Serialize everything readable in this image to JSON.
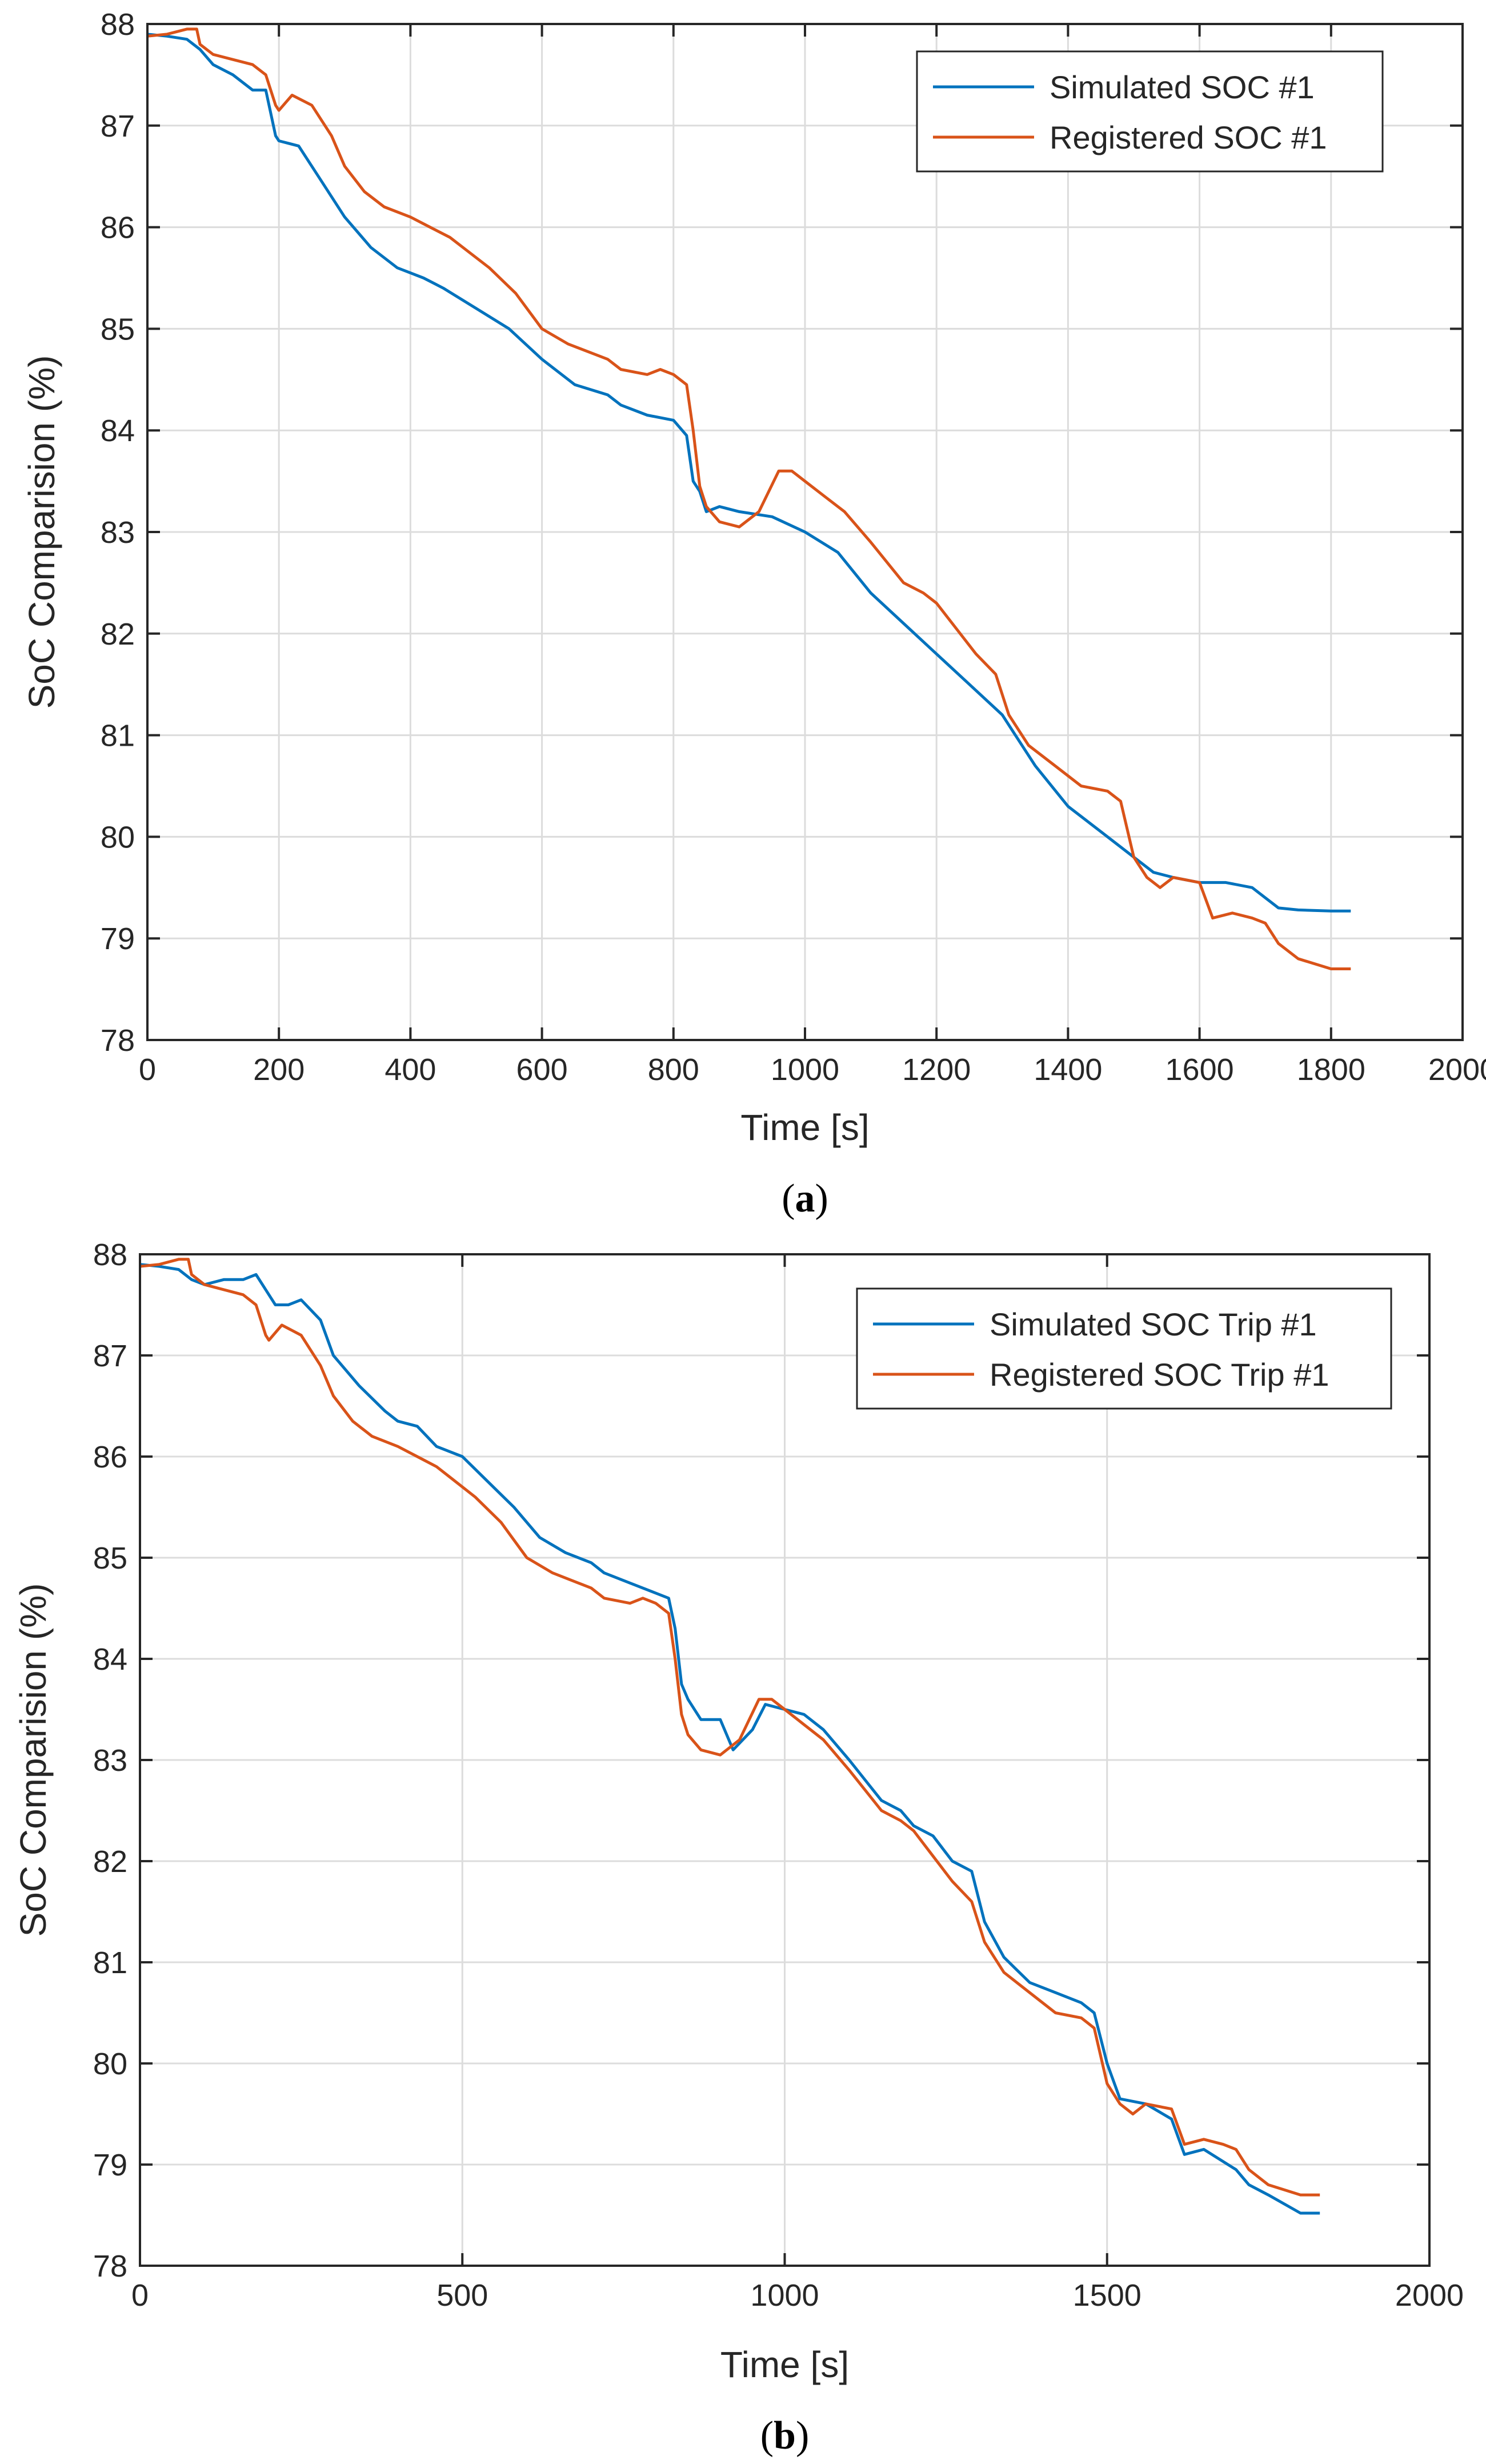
{
  "colors": {
    "simulated": "#0072BD",
    "registered": "#D95319",
    "axis": "#262626",
    "grid": "#dcdcdc"
  },
  "chart_data": [
    {
      "type": "line",
      "panel": "a",
      "caption_letter": "a",
      "xlabel": "Time [s]",
      "ylabel": "SoC Comparision (%)",
      "xlim": [
        0,
        2000
      ],
      "ylim": [
        78,
        88
      ],
      "xticks": [
        0,
        200,
        400,
        600,
        800,
        1000,
        1200,
        1400,
        1600,
        1800,
        2000
      ],
      "yticks": [
        78,
        79,
        80,
        81,
        82,
        83,
        84,
        85,
        86,
        87,
        88
      ],
      "grid": true,
      "legend_position": "top-right",
      "series": [
        {
          "name": "Simulated SOC #1",
          "color_key": "simulated",
          "x": [
            0,
            30,
            60,
            80,
            100,
            130,
            160,
            180,
            195,
            200,
            230,
            260,
            300,
            340,
            380,
            400,
            420,
            450,
            500,
            550,
            600,
            650,
            700,
            720,
            760,
            800,
            820,
            830,
            840,
            850,
            870,
            900,
            950,
            1000,
            1050,
            1100,
            1150,
            1200,
            1250,
            1300,
            1320,
            1350,
            1400,
            1450,
            1500,
            1530,
            1560,
            1600,
            1640,
            1680,
            1700,
            1720,
            1750,
            1800,
            1830
          ],
          "values": [
            87.9,
            87.88,
            87.85,
            87.75,
            87.6,
            87.5,
            87.35,
            87.35,
            86.9,
            86.85,
            86.8,
            86.5,
            86.1,
            85.8,
            85.6,
            85.55,
            85.5,
            85.4,
            85.2,
            85.0,
            84.7,
            84.45,
            84.35,
            84.25,
            84.15,
            84.1,
            83.95,
            83.5,
            83.4,
            83.2,
            83.25,
            83.2,
            83.15,
            83.0,
            82.8,
            82.4,
            82.1,
            81.8,
            81.5,
            81.2,
            81.0,
            80.7,
            80.3,
            80.05,
            79.8,
            79.65,
            79.6,
            79.55,
            79.55,
            79.5,
            79.4,
            79.3,
            79.28,
            79.27,
            79.27
          ]
        },
        {
          "name": "Registered SOC #1",
          "color_key": "registered",
          "x": [
            0,
            30,
            60,
            75,
            80,
            100,
            130,
            160,
            180,
            195,
            200,
            220,
            250,
            280,
            300,
            330,
            360,
            400,
            430,
            460,
            480,
            520,
            560,
            600,
            640,
            680,
            700,
            720,
            760,
            780,
            800,
            820,
            830,
            840,
            850,
            870,
            900,
            930,
            960,
            980,
            1000,
            1030,
            1060,
            1100,
            1150,
            1180,
            1200,
            1230,
            1260,
            1290,
            1310,
            1340,
            1380,
            1420,
            1460,
            1480,
            1500,
            1520,
            1540,
            1560,
            1600,
            1620,
            1650,
            1680,
            1700,
            1720,
            1750,
            1800,
            1830
          ],
          "values": [
            87.88,
            87.9,
            87.95,
            87.95,
            87.8,
            87.7,
            87.65,
            87.6,
            87.5,
            87.2,
            87.15,
            87.3,
            87.2,
            86.9,
            86.6,
            86.35,
            86.2,
            86.1,
            86.0,
            85.9,
            85.8,
            85.6,
            85.35,
            85.0,
            84.85,
            84.75,
            84.7,
            84.6,
            84.55,
            84.6,
            84.55,
            84.45,
            84.0,
            83.45,
            83.25,
            83.1,
            83.05,
            83.2,
            83.6,
            83.6,
            83.5,
            83.35,
            83.2,
            82.9,
            82.5,
            82.4,
            82.3,
            82.05,
            81.8,
            81.6,
            81.2,
            80.9,
            80.7,
            80.5,
            80.45,
            80.35,
            79.8,
            79.6,
            79.5,
            79.6,
            79.55,
            79.2,
            79.25,
            79.2,
            79.15,
            78.95,
            78.8,
            78.7,
            78.7
          ]
        }
      ]
    },
    {
      "type": "line",
      "panel": "b",
      "caption_letter": "b",
      "xlabel": "Time [s]",
      "ylabel": "SoC Comparision (%)",
      "xlim": [
        0,
        2000
      ],
      "ylim": [
        78,
        88
      ],
      "xticks": [
        0,
        500,
        1000,
        1500,
        2000
      ],
      "yticks": [
        78,
        79,
        80,
        81,
        82,
        83,
        84,
        85,
        86,
        87,
        88
      ],
      "grid": true,
      "legend_position": "top-right",
      "series": [
        {
          "name": "Simulated SOC Trip #1",
          "color_key": "simulated",
          "x": [
            0,
            30,
            60,
            80,
            100,
            130,
            160,
            180,
            200,
            210,
            230,
            250,
            280,
            300,
            340,
            380,
            400,
            430,
            460,
            500,
            540,
            580,
            620,
            660,
            700,
            720,
            760,
            800,
            820,
            830,
            840,
            850,
            870,
            900,
            920,
            950,
            970,
            1000,
            1030,
            1060,
            1100,
            1150,
            1180,
            1200,
            1230,
            1260,
            1290,
            1310,
            1340,
            1380,
            1420,
            1460,
            1480,
            1500,
            1520,
            1560,
            1600,
            1620,
            1650,
            1700,
            1720,
            1750,
            1800,
            1830
          ],
          "values": [
            87.9,
            87.88,
            87.85,
            87.75,
            87.7,
            87.75,
            87.75,
            87.8,
            87.6,
            87.5,
            87.5,
            87.55,
            87.35,
            87.0,
            86.7,
            86.45,
            86.35,
            86.3,
            86.1,
            86.0,
            85.75,
            85.5,
            85.2,
            85.05,
            84.95,
            84.85,
            84.75,
            84.65,
            84.6,
            84.3,
            83.75,
            83.6,
            83.4,
            83.4,
            83.1,
            83.3,
            83.55,
            83.5,
            83.45,
            83.3,
            83.0,
            82.6,
            82.5,
            82.35,
            82.25,
            82.0,
            81.9,
            81.4,
            81.05,
            80.8,
            80.7,
            80.6,
            80.5,
            80.0,
            79.65,
            79.6,
            79.45,
            79.1,
            79.15,
            78.95,
            78.8,
            78.7,
            78.52,
            78.52
          ]
        },
        {
          "name": "Registered SOC Trip #1",
          "color_key": "registered",
          "x": [
            0,
            30,
            60,
            75,
            80,
            100,
            130,
            160,
            180,
            195,
            200,
            220,
            250,
            280,
            300,
            330,
            360,
            400,
            430,
            460,
            480,
            520,
            560,
            600,
            640,
            680,
            700,
            720,
            760,
            780,
            800,
            820,
            830,
            840,
            850,
            870,
            900,
            930,
            960,
            980,
            1000,
            1030,
            1060,
            1100,
            1150,
            1180,
            1200,
            1230,
            1260,
            1290,
            1310,
            1340,
            1380,
            1420,
            1460,
            1480,
            1500,
            1520,
            1540,
            1560,
            1600,
            1620,
            1650,
            1680,
            1700,
            1720,
            1750,
            1800,
            1830
          ],
          "values": [
            87.88,
            87.9,
            87.95,
            87.95,
            87.8,
            87.7,
            87.65,
            87.6,
            87.5,
            87.2,
            87.15,
            87.3,
            87.2,
            86.9,
            86.6,
            86.35,
            86.2,
            86.1,
            86.0,
            85.9,
            85.8,
            85.6,
            85.35,
            85.0,
            84.85,
            84.75,
            84.7,
            84.6,
            84.55,
            84.6,
            84.55,
            84.45,
            84.0,
            83.45,
            83.25,
            83.1,
            83.05,
            83.2,
            83.6,
            83.6,
            83.5,
            83.35,
            83.2,
            82.9,
            82.5,
            82.4,
            82.3,
            82.05,
            81.8,
            81.6,
            81.2,
            80.9,
            80.7,
            80.5,
            80.45,
            80.35,
            79.8,
            79.6,
            79.5,
            79.6,
            79.55,
            79.2,
            79.25,
            79.2,
            79.15,
            78.95,
            78.8,
            78.7,
            78.7
          ]
        }
      ]
    }
  ]
}
